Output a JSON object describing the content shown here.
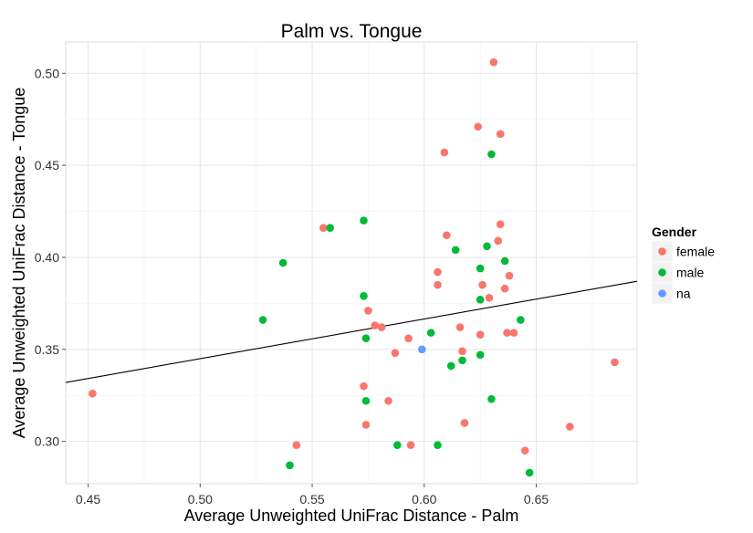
{
  "chart_data": {
    "type": "scatter",
    "title": "Palm vs. Tongue",
    "xlabel": "Average Unweighted UniFrac Distance - Palm",
    "ylabel": "Average Unweighted UniFrac Distance - Tongue",
    "xlim": [
      0.44,
      0.695
    ],
    "ylim": [
      0.277,
      0.517
    ],
    "xticks": [
      "0.45",
      "0.50",
      "0.55",
      "0.60",
      "0.65"
    ],
    "xtick_values": [
      0.45,
      0.5,
      0.55,
      0.6,
      0.65
    ],
    "yticks": [
      "0.30",
      "0.35",
      "0.40",
      "0.45",
      "0.50"
    ],
    "ytick_values": [
      0.3,
      0.35,
      0.4,
      0.45,
      0.5
    ],
    "grid": true,
    "legend": {
      "title": "Gender",
      "placement": "right",
      "entries": [
        {
          "key": "female",
          "label": "female",
          "color": "#f8766d"
        },
        {
          "key": "male",
          "label": "male",
          "color": "#00ba38"
        },
        {
          "key": "na",
          "label": "na",
          "color": "#619cff"
        }
      ]
    },
    "trendline": {
      "x": [
        0.44,
        0.695
      ],
      "y": [
        0.332,
        0.387
      ],
      "color": "#000000"
    },
    "series": [
      {
        "name": "female",
        "color": "#f8766d",
        "points": [
          [
            0.452,
            0.326
          ],
          [
            0.543,
            0.298
          ],
          [
            0.555,
            0.416
          ],
          [
            0.573,
            0.33
          ],
          [
            0.574,
            0.309
          ],
          [
            0.575,
            0.371
          ],
          [
            0.578,
            0.363
          ],
          [
            0.581,
            0.362
          ],
          [
            0.584,
            0.322
          ],
          [
            0.587,
            0.348
          ],
          [
            0.593,
            0.356
          ],
          [
            0.594,
            0.298
          ],
          [
            0.606,
            0.392
          ],
          [
            0.606,
            0.385
          ],
          [
            0.609,
            0.457
          ],
          [
            0.61,
            0.412
          ],
          [
            0.616,
            0.362
          ],
          [
            0.617,
            0.349
          ],
          [
            0.618,
            0.31
          ],
          [
            0.624,
            0.471
          ],
          [
            0.625,
            0.358
          ],
          [
            0.626,
            0.385
          ],
          [
            0.629,
            0.378
          ],
          [
            0.631,
            0.506
          ],
          [
            0.633,
            0.409
          ],
          [
            0.634,
            0.467
          ],
          [
            0.634,
            0.418
          ],
          [
            0.636,
            0.383
          ],
          [
            0.637,
            0.359
          ],
          [
            0.638,
            0.39
          ],
          [
            0.64,
            0.359
          ],
          [
            0.645,
            0.295
          ],
          [
            0.665,
            0.308
          ],
          [
            0.685,
            0.343
          ]
        ]
      },
      {
        "name": "male",
        "color": "#00ba38",
        "points": [
          [
            0.528,
            0.366
          ],
          [
            0.537,
            0.397
          ],
          [
            0.54,
            0.287
          ],
          [
            0.558,
            0.416
          ],
          [
            0.573,
            0.379
          ],
          [
            0.573,
            0.42
          ],
          [
            0.574,
            0.356
          ],
          [
            0.574,
            0.322
          ],
          [
            0.588,
            0.298
          ],
          [
            0.603,
            0.359
          ],
          [
            0.606,
            0.298
          ],
          [
            0.612,
            0.341
          ],
          [
            0.614,
            0.404
          ],
          [
            0.617,
            0.344
          ],
          [
            0.625,
            0.394
          ],
          [
            0.625,
            0.377
          ],
          [
            0.625,
            0.347
          ],
          [
            0.628,
            0.406
          ],
          [
            0.63,
            0.456
          ],
          [
            0.63,
            0.323
          ],
          [
            0.636,
            0.398
          ],
          [
            0.643,
            0.366
          ],
          [
            0.647,
            0.283
          ]
        ]
      },
      {
        "name": "na",
        "color": "#619cff",
        "points": [
          [
            0.599,
            0.35
          ]
        ]
      }
    ]
  }
}
